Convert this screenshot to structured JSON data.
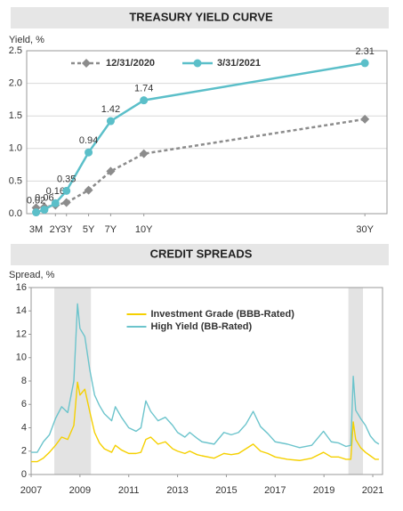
{
  "chart_data": [
    {
      "type": "line",
      "title": "TREASURY YIELD CURVE",
      "y_label": "Yield, %",
      "x": [
        0.25,
        1,
        2,
        3,
        5,
        7,
        10,
        30
      ],
      "xlim": [
        -0.6,
        32
      ],
      "xticks": [
        {
          "value": 0.25,
          "label": "3M"
        },
        {
          "value": 2,
          "label": "2Y"
        },
        {
          "value": 3,
          "label": "3Y"
        },
        {
          "value": 5,
          "label": "5Y"
        },
        {
          "value": 7,
          "label": "7Y"
        },
        {
          "value": 10,
          "label": "10Y"
        },
        {
          "value": 30,
          "label": "30Y"
        }
      ],
      "ylim": [
        0,
        2.5
      ],
      "yticks": [
        {
          "value": 0,
          "label": "0.0"
        },
        0.5,
        {
          "value": 1,
          "label": "1.0"
        },
        1.5,
        {
          "value": 2,
          "label": "2.0"
        },
        2.5
      ],
      "grid": true,
      "legend": "top-left",
      "series": [
        {
          "name": "12/31/2020",
          "color": "#8c8c8c",
          "dashed": true,
          "marker": "diamond",
          "values": [
            0.09,
            0.1,
            0.13,
            0.17,
            0.36,
            0.65,
            0.92,
            1.45
          ]
        },
        {
          "name": "3/31/2021",
          "color": "#5bbfc9",
          "dashed": false,
          "marker": "circle",
          "data_labels": true,
          "values": [
            0.02,
            0.06,
            0.16,
            0.35,
            0.94,
            1.42,
            1.74,
            2.31
          ]
        }
      ]
    },
    {
      "type": "line",
      "title": "CREDIT SPREADS",
      "y_label": "Spread, %",
      "x": [
        2007.0,
        2007.25,
        2007.5,
        2007.75,
        2008.0,
        2008.25,
        2008.5,
        2008.75,
        2008.9,
        2009.0,
        2009.2,
        2009.4,
        2009.6,
        2009.8,
        2010.0,
        2010.3,
        2010.45,
        2010.7,
        2011.0,
        2011.3,
        2011.5,
        2011.7,
        2011.9,
        2012.2,
        2012.5,
        2012.8,
        2013.0,
        2013.3,
        2013.5,
        2013.8,
        2014.0,
        2014.5,
        2014.9,
        2015.2,
        2015.5,
        2015.8,
        2016.1,
        2016.4,
        2016.7,
        2017.0,
        2017.5,
        2018.0,
        2018.5,
        2018.98,
        2019.3,
        2019.6,
        2019.9,
        2020.1,
        2020.2,
        2020.3,
        2020.5,
        2020.7,
        2020.9,
        2021.1,
        2021.25
      ],
      "xlim": [
        2007,
        2021.4
      ],
      "xticks": [
        2007,
        2009,
        2011,
        2013,
        2015,
        2017,
        2019,
        2021
      ],
      "ylim": [
        0,
        16
      ],
      "yticks": [
        0,
        2,
        4,
        6,
        8,
        10,
        12,
        14,
        16
      ],
      "grid": false,
      "legend": "top",
      "shaded_ranges": [
        [
          2007.95,
          2009.45
        ],
        [
          2020.0,
          2020.6
        ]
      ],
      "shade_color": "#e3e3e3",
      "series": [
        {
          "name": "Investment Grade (BBB-Rated)",
          "color": "#f5d000",
          "dashed": false,
          "values": [
            1.1,
            1.1,
            1.4,
            1.9,
            2.5,
            3.2,
            3.0,
            4.2,
            7.9,
            6.8,
            7.3,
            5.4,
            3.6,
            2.7,
            2.2,
            1.9,
            2.5,
            2.1,
            1.8,
            1.8,
            1.9,
            3.0,
            3.2,
            2.6,
            2.8,
            2.2,
            2.0,
            1.8,
            2.0,
            1.7,
            1.6,
            1.4,
            1.8,
            1.7,
            1.8,
            2.2,
            2.6,
            2.0,
            1.8,
            1.5,
            1.3,
            1.2,
            1.4,
            1.9,
            1.5,
            1.5,
            1.3,
            1.3,
            4.5,
            3.0,
            2.3,
            1.9,
            1.6,
            1.3,
            1.3
          ]
        },
        {
          "name": "High Yield (BB-Rated)",
          "color": "#6cc4cc",
          "dashed": false,
          "values": [
            1.9,
            1.9,
            2.8,
            3.4,
            4.8,
            5.8,
            5.3,
            8.0,
            14.6,
            12.5,
            11.8,
            9.0,
            6.8,
            5.9,
            5.2,
            4.6,
            5.8,
            4.9,
            4.0,
            3.7,
            4.0,
            6.3,
            5.4,
            4.6,
            4.9,
            4.2,
            3.6,
            3.2,
            3.6,
            3.1,
            2.8,
            2.6,
            3.6,
            3.4,
            3.6,
            4.3,
            5.4,
            4.1,
            3.5,
            2.8,
            2.6,
            2.3,
            2.5,
            3.7,
            2.8,
            2.7,
            2.4,
            2.5,
            8.4,
            5.5,
            4.8,
            4.2,
            3.3,
            2.8,
            2.6
          ]
        }
      ]
    }
  ]
}
